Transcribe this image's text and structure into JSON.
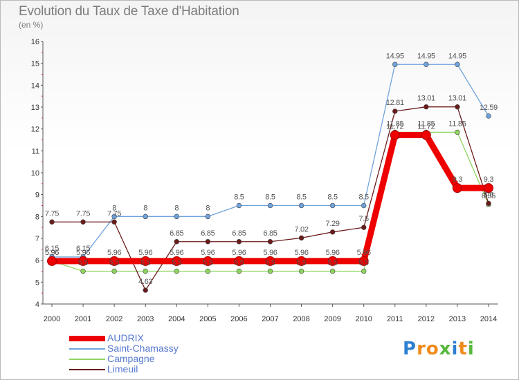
{
  "title": "Evolution du Taux de Taxe d'Habitation",
  "unit_label": "(en %)",
  "chart_data": {
    "type": "line",
    "title": "Evolution du Taux de Taxe d'Habitation",
    "ylabel": "(en %)",
    "xlabel": "",
    "x": [
      "2000",
      "2001",
      "2002",
      "2003",
      "2004",
      "2005",
      "2006",
      "2007",
      "2008",
      "2009",
      "2010",
      "2011",
      "2012",
      "2013",
      "2014"
    ],
    "ylim": [
      4,
      16
    ],
    "yticks": [
      "4",
      "5",
      "6",
      "7",
      "8",
      "9",
      "10",
      "11",
      "12",
      "13",
      "14",
      "15",
      "16"
    ],
    "grid": false,
    "legend_position": "bottom-left",
    "series": [
      {
        "name": "AUDRIX",
        "color": "#ee0000",
        "values": [
          5.96,
          5.96,
          5.96,
          5.96,
          5.96,
          5.96,
          5.96,
          5.96,
          5.96,
          5.96,
          5.96,
          11.72,
          11.72,
          9.3,
          9.3
        ],
        "labels": [
          "5.96",
          "5.96",
          "5.96",
          "5.96",
          "5.96",
          "5.96",
          "5.96",
          "5.96",
          "5.96",
          "5.96",
          "5.96",
          "11.72",
          "11.72",
          "9.3",
          "9.3"
        ]
      },
      {
        "name": "Saint-Chamassy",
        "color": "#6fa3dc",
        "values": [
          6.15,
          6.15,
          8,
          8,
          8,
          8,
          8.5,
          8.5,
          8.5,
          8.5,
          8.5,
          14.95,
          14.95,
          14.95,
          12.59
        ],
        "labels": [
          "6.15",
          "6.15",
          "8",
          "8",
          "8",
          "8",
          "8.5",
          "8.5",
          "8.5",
          "8.5",
          "8.5",
          "14.95",
          "14.95",
          "14.95",
          "12.59"
        ]
      },
      {
        "name": "Campagne",
        "color": "#8ed45f",
        "values": [
          5.96,
          5.5,
          5.5,
          5.5,
          5.5,
          5.5,
          5.5,
          5.5,
          5.5,
          5.5,
          5.5,
          11.85,
          11.85,
          11.85,
          8.55
        ],
        "labels": [
          "5.96",
          "5.5",
          "5.5",
          "5.5",
          "5.5",
          "5.5",
          "5.5",
          "5.5",
          "5.5",
          "5.5",
          "5.5",
          "11.85",
          "11.85",
          "11.85",
          "8.55"
        ]
      },
      {
        "name": "Limeuil",
        "color": "#6b1a1a",
        "values": [
          7.75,
          7.75,
          7.75,
          4.63,
          6.85,
          6.85,
          6.85,
          6.85,
          7.02,
          7.29,
          7.5,
          12.81,
          13.01,
          13.01,
          8.6
        ],
        "labels": [
          "7.75",
          "7.75",
          "7.75",
          "4.63",
          "6.85",
          "6.85",
          "6.85",
          "6.85",
          "7.02",
          "7.29",
          "7.5",
          "12.81",
          "13.01",
          "13.01",
          "8.6"
        ]
      }
    ]
  },
  "logo": {
    "letters": [
      "P",
      "r",
      "o",
      "x",
      "i",
      "t",
      "i"
    ],
    "colors": [
      "#2d7fd2",
      "#f08a1c",
      "#f08a1c",
      "#56b83b",
      "#2d7fd2",
      "#f08a1c",
      "#56b83b"
    ]
  }
}
